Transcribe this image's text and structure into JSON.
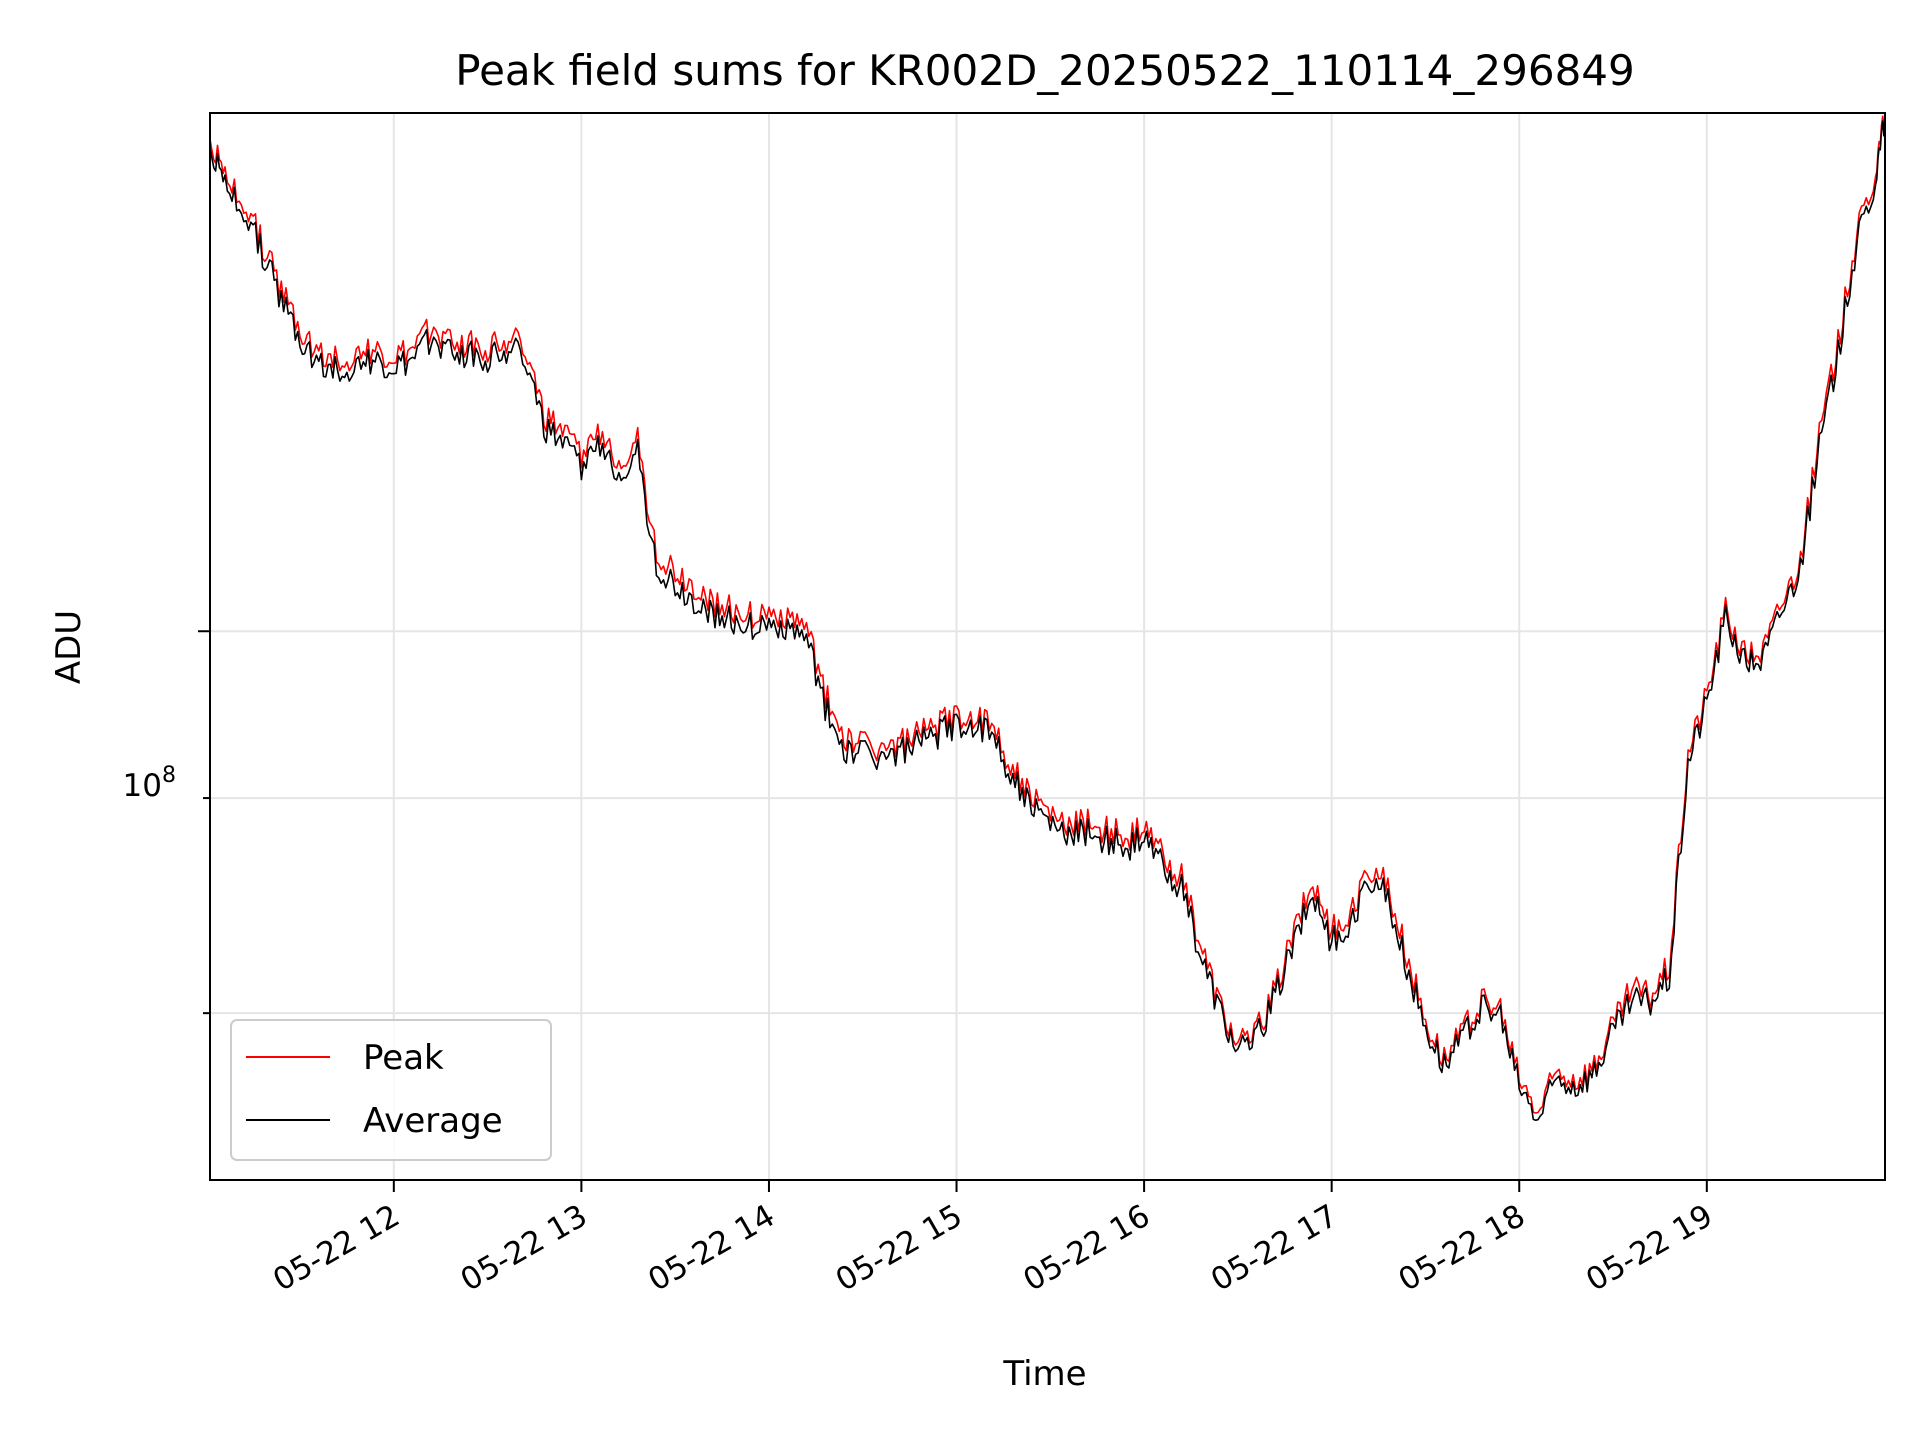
{
  "chart_data": {
    "type": "line",
    "title": "Peak field sums for KR002D_20250522_110114_296849",
    "xlabel": "Time",
    "ylabel": "ADU",
    "x_ticks": [
      "05-22 12",
      "05-22 13",
      "05-22 14",
      "05-22 15",
      "05-22 16",
      "05-22 17",
      "05-22 18",
      "05-22 19"
    ],
    "y_scale": "log",
    "y_major_tick_label": "10^8",
    "y_minor_ticks": [
      60000000,
      80000000
    ],
    "ylim": [
      48000000,
      200000000
    ],
    "x_unit": "hours since 05-22 11:00",
    "xlim": [
      11.02,
      19.95
    ],
    "grid": true,
    "legend": {
      "position": "lower-left",
      "entries": [
        "Peak",
        "Average"
      ]
    },
    "colors": {
      "Peak": "#ff0000",
      "Average": "#000000"
    },
    "series": [
      {
        "name": "Peak",
        "color": "#ff0000",
        "x": [
          11.02,
          11.1,
          11.2,
          11.3,
          11.4,
          11.5,
          11.6,
          11.7,
          11.8,
          11.9,
          12.0,
          12.1,
          12.2,
          12.3,
          12.4,
          12.5,
          12.6,
          12.7,
          12.8,
          12.9,
          13.0,
          13.1,
          13.2,
          13.3,
          13.4,
          13.5,
          13.6,
          13.7,
          13.8,
          13.9,
          14.0,
          14.1,
          14.2,
          14.3,
          14.4,
          14.5,
          14.6,
          14.7,
          14.8,
          14.9,
          15.0,
          15.1,
          15.2,
          15.3,
          15.4,
          15.5,
          15.6,
          15.7,
          15.8,
          15.9,
          16.0,
          16.1,
          16.2,
          16.3,
          16.4,
          16.5,
          16.6,
          16.7,
          16.8,
          16.9,
          17.0,
          17.1,
          17.2,
          17.3,
          17.4,
          17.5,
          17.6,
          17.7,
          17.8,
          17.9,
          18.0,
          18.1,
          18.2,
          18.3,
          18.4,
          18.5,
          18.6,
          18.7,
          18.8,
          18.9,
          19.0,
          19.1,
          19.2,
          19.3,
          19.4,
          19.5,
          19.6,
          19.7,
          19.8,
          19.9,
          19.95
        ],
        "values": [
          193000000,
          183000000,
          178000000,
          168000000,
          158000000,
          150000000,
          145000000,
          144000000,
          145000000,
          145000000,
          144000000,
          145000000,
          150000000,
          148000000,
          147000000,
          146000000,
          148000000,
          147000000,
          133000000,
          130000000,
          127000000,
          130000000,
          126000000,
          129000000,
          111000000,
          108000000,
          106000000,
          104000000,
          103000000,
          102000000,
          102000000,
          102000000,
          100000000,
          92000000,
          87000000,
          86000000,
          85500000,
          86000000,
          87000000,
          88000000,
          89500000,
          89000000,
          88000000,
          83000000,
          80000000,
          78000000,
          77000000,
          77500000,
          76500000,
          76000000,
          76500000,
          74000000,
          72000000,
          66000000,
          61000000,
          57500000,
          58500000,
          62000000,
          67000000,
          71500000,
          67000000,
          68000000,
          73000000,
          71000000,
          65000000,
          59500000,
          56500000,
          58500000,
          61000000,
          60000000,
          55000000,
          52500000,
          55500000,
          55000000,
          56000000,
          59000000,
          62000000,
          61500000,
          64000000,
          85000000,
          92000000,
          103000000,
          97000000,
          97500000,
          104000000,
          110000000,
          130000000,
          147000000,
          170000000,
          185000000,
          200000000
        ]
      },
      {
        "name": "Average",
        "color": "#000000",
        "x": [
          11.02,
          11.1,
          11.2,
          11.3,
          11.4,
          11.5,
          11.6,
          11.7,
          11.8,
          11.9,
          12.0,
          12.1,
          12.2,
          12.3,
          12.4,
          12.5,
          12.6,
          12.7,
          12.8,
          12.9,
          13.0,
          13.1,
          13.2,
          13.3,
          13.4,
          13.5,
          13.6,
          13.7,
          13.8,
          13.9,
          14.0,
          14.1,
          14.2,
          14.3,
          14.4,
          14.5,
          14.6,
          14.7,
          14.8,
          14.9,
          15.0,
          15.1,
          15.2,
          15.3,
          15.4,
          15.5,
          15.6,
          15.7,
          15.8,
          15.9,
          16.0,
          16.1,
          16.2,
          16.3,
          16.4,
          16.5,
          16.6,
          16.7,
          16.8,
          16.9,
          17.0,
          17.1,
          17.2,
          17.3,
          17.4,
          17.5,
          17.6,
          17.7,
          17.8,
          17.9,
          18.0,
          18.1,
          18.2,
          18.3,
          18.4,
          18.5,
          18.6,
          18.7,
          18.8,
          18.9,
          19.0,
          19.1,
          19.2,
          19.3,
          19.4,
          19.5,
          19.6,
          19.7,
          19.8,
          19.9,
          19.95
        ],
        "values": [
          191000000,
          181000000,
          176000000,
          166000000,
          156000000,
          148000000,
          143000000,
          142000000,
          143000000,
          143000000,
          142000000,
          143000000,
          148000000,
          146000000,
          145000000,
          144000000,
          146000000,
          145000000,
          131000000,
          128000000,
          125000000,
          128000000,
          124000000,
          127000000,
          109000000,
          106000000,
          104000000,
          102500000,
          101500000,
          100500000,
          100500000,
          100500000,
          98500000,
          90500000,
          85500000,
          85000000,
          84500000,
          85000000,
          86000000,
          87000000,
          88500000,
          88000000,
          87000000,
          82000000,
          79000000,
          77000000,
          76000000,
          76500000,
          75500000,
          75000000,
          75500000,
          73000000,
          71000000,
          65000000,
          60500000,
          57000000,
          58000000,
          61500000,
          66000000,
          70500000,
          66000000,
          67000000,
          72000000,
          70000000,
          64000000,
          59000000,
          56000000,
          58000000,
          60500000,
          59500000,
          54500000,
          52000000,
          55000000,
          54500000,
          55500000,
          58500000,
          61000000,
          61000000,
          63000000,
          84000000,
          91000000,
          102000000,
          96000000,
          96500000,
          103000000,
          109000000,
          128000000,
          145000000,
          168000000,
          183000000,
          199000000
        ]
      }
    ]
  }
}
